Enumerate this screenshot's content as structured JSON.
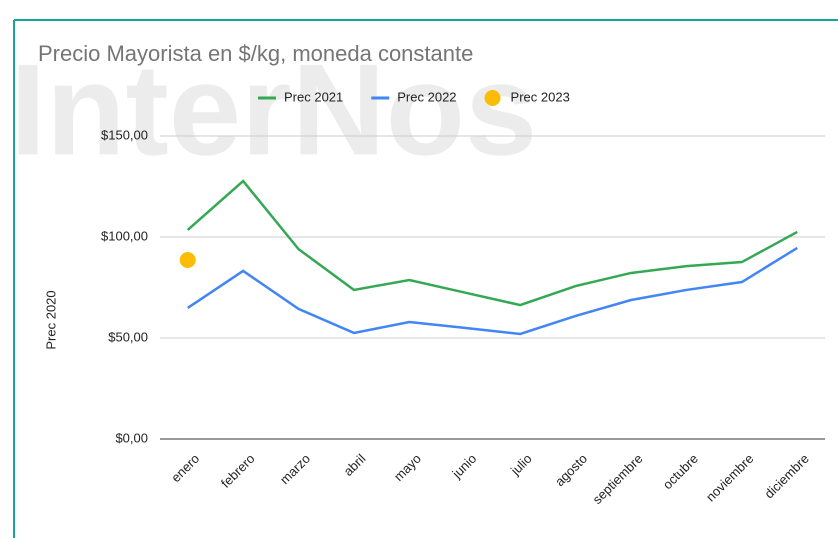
{
  "chart_data": {
    "type": "line",
    "title": "Precio Mayorista en $/kg, moneda constante",
    "watermark": "InterNos",
    "y_label": "Prec 2020",
    "categories": [
      "enero",
      "febrero",
      "marzo",
      "abril",
      "mayo",
      "junio",
      "julio",
      "agosto",
      "septiembre",
      "octubre",
      "noviembre",
      "diciembre"
    ],
    "series": [
      {
        "name": "Prec 2021",
        "color": "#34a853",
        "values": [
          103.5,
          127.7,
          94,
          73.8,
          78.7,
          72.5,
          66.3,
          75.7,
          82.2,
          85.6,
          87.6,
          102.5
        ]
      },
      {
        "name": "Prec 2022",
        "color": "#4285f4",
        "values": [
          64.9,
          83.2,
          64.4,
          52.5,
          57.9,
          55,
          52,
          60.9,
          68.8,
          73.8,
          77.7,
          94.6
        ]
      },
      {
        "name": "Prec 2023",
        "color": "#fbbc04",
        "marker": "circle",
        "values": [
          88.6,
          null,
          null,
          null,
          null,
          null,
          null,
          null,
          null,
          null,
          null,
          null
        ]
      }
    ],
    "ylim": [
      0,
      150
    ],
    "yticks": [
      {
        "value": 0,
        "label": "$0,00"
      },
      {
        "value": 50,
        "label": "$50,00"
      },
      {
        "value": 100,
        "label": "$100,00"
      },
      {
        "value": 150,
        "label": "$150,00"
      }
    ],
    "grid": true,
    "legend": "top"
  }
}
